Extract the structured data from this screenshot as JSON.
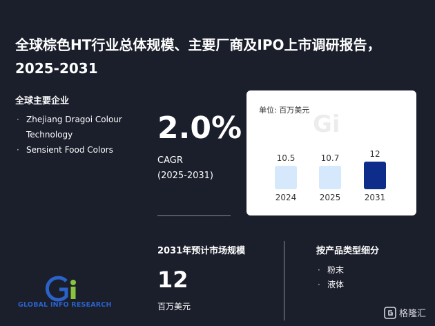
{
  "title": "全球棕色HT行业总体规模、主要厂商及IPO上市调研报告，2025-2031",
  "companies": {
    "heading": "全球主要企业",
    "items": [
      "Zhejiang Dragoi Colour Technology",
      "Sensient Food Colors"
    ]
  },
  "cagr": {
    "value": "2.0%",
    "label": "CAGR",
    "period": "(2025-2031)"
  },
  "chart_data": {
    "type": "bar",
    "unit_label": "单位: 百万美元",
    "categories": [
      "2024",
      "2025",
      "2031"
    ],
    "values": [
      10.5,
      10.7,
      12
    ],
    "colors": [
      "#d6e8fb",
      "#d6e8fb",
      "#0e2d8a"
    ],
    "title": "",
    "xlabel": "",
    "ylabel": ""
  },
  "market": {
    "heading": "2031年预计市场规模",
    "value": "12",
    "unit": "百万美元"
  },
  "product": {
    "heading": "按产品类型细分",
    "items": [
      "粉末",
      "液体"
    ]
  },
  "logo": {
    "text": "GLOBAL INFO RESEARCH"
  },
  "corner": {
    "text": "格隆汇"
  },
  "colors": {
    "background": "#1b1e2b",
    "accent_dark": "#0e2d8a",
    "accent_light": "#d6e8fb"
  }
}
